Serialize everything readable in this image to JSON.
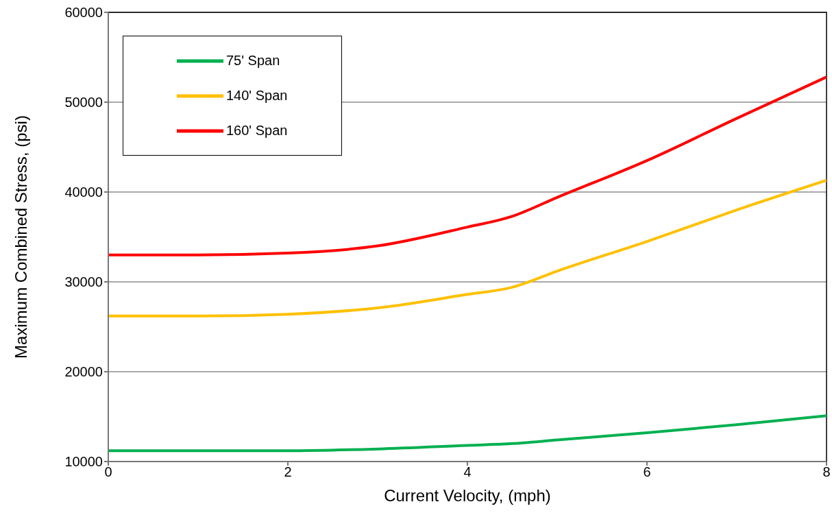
{
  "chart_data": {
    "type": "line",
    "xlabel": "Current Velocity, (mph)",
    "ylabel": "Maximum Combined Stress, (psi)",
    "x": [
      0,
      1,
      2,
      3,
      4,
      4.5,
      5,
      6,
      7,
      8
    ],
    "series": [
      {
        "name": "75' Span",
        "color": "#00b050",
        "values": [
          11200,
          11200,
          11200,
          11400,
          11800,
          12000,
          12400,
          13200,
          14100,
          15100
        ]
      },
      {
        "name": "140' Span",
        "color": "#ffc000",
        "values": [
          26200,
          26200,
          26400,
          27100,
          28600,
          29400,
          31200,
          34500,
          38000,
          41300
        ]
      },
      {
        "name": "160' Span",
        "color": "#ff0000",
        "values": [
          33000,
          33000,
          33200,
          34000,
          36100,
          37300,
          39400,
          43500,
          48200,
          52800
        ]
      }
    ],
    "xlim": [
      0,
      8
    ],
    "xticks": [
      0,
      2,
      4,
      6,
      8
    ],
    "ylim": [
      10000,
      60000
    ],
    "yticks": [
      10000,
      20000,
      30000,
      40000,
      50000,
      60000
    ],
    "grid": "y",
    "legend": "top left",
    "marker": "none",
    "line_style": "solid"
  }
}
